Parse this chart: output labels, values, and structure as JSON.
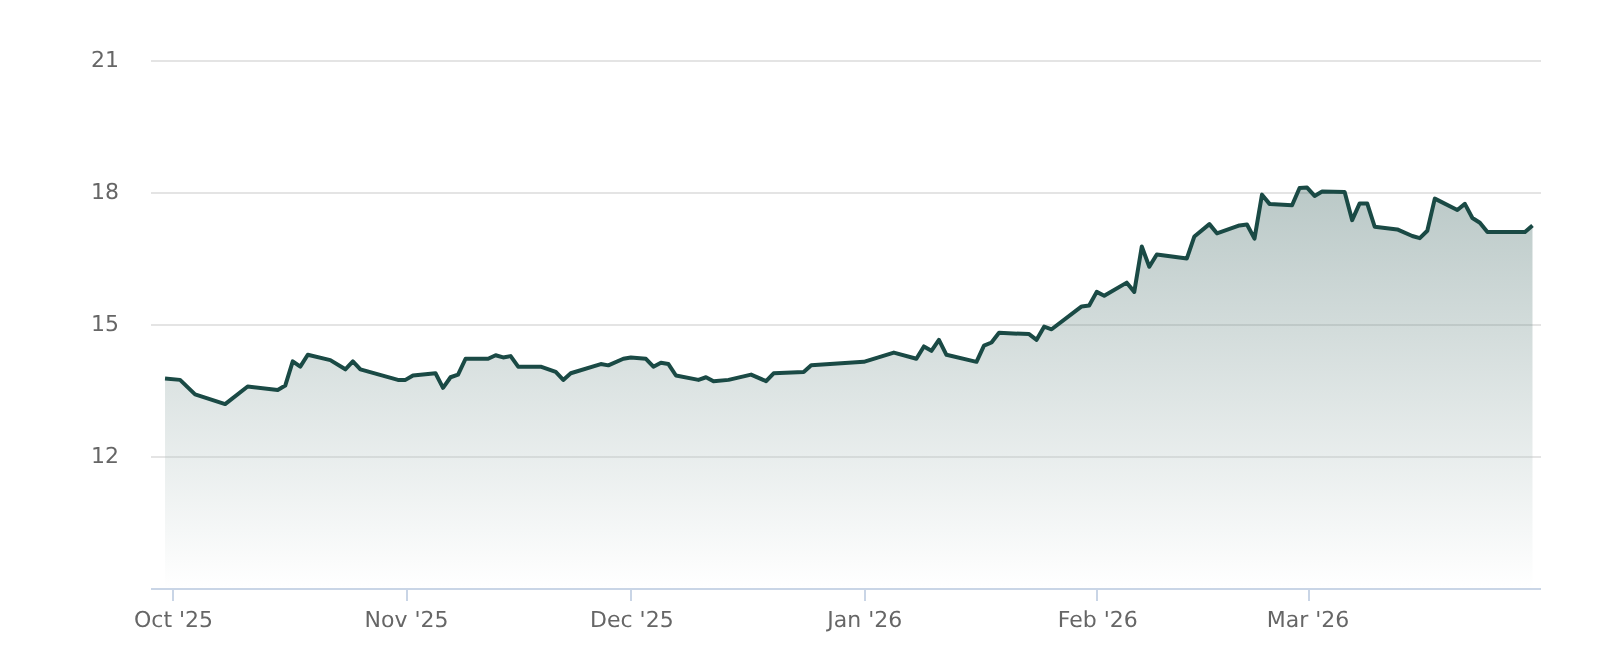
{
  "chart_data": {
    "type": "area",
    "x": [
      "2025-09-30",
      "2025-10-02",
      "2025-10-04",
      "2025-10-08",
      "2025-10-11",
      "2025-10-15",
      "2025-10-16",
      "2025-10-17",
      "2025-10-18",
      "2025-10-19",
      "2025-10-22",
      "2025-10-24",
      "2025-10-25",
      "2025-10-26",
      "2025-10-31",
      "2025-11-01",
      "2025-11-02",
      "2025-11-05",
      "2025-11-06",
      "2025-11-07",
      "2025-11-08",
      "2025-11-09",
      "2025-11-12",
      "2025-11-13",
      "2025-11-14",
      "2025-11-15",
      "2025-11-16",
      "2025-11-19",
      "2025-11-21",
      "2025-11-22",
      "2025-11-23",
      "2025-11-27",
      "2025-11-28",
      "2025-11-30",
      "2025-12-01",
      "2025-12-03",
      "2025-12-04",
      "2025-12-05",
      "2025-12-06",
      "2025-12-07",
      "2025-12-10",
      "2025-12-11",
      "2025-12-12",
      "2025-12-14",
      "2025-12-17",
      "2025-12-19",
      "2025-12-20",
      "2025-12-24",
      "2025-12-25",
      "2026-01-01",
      "2026-01-05",
      "2026-01-08",
      "2026-01-09",
      "2026-01-10",
      "2026-01-11",
      "2026-01-12",
      "2026-01-16",
      "2026-01-17",
      "2026-01-18",
      "2026-01-19",
      "2026-01-23",
      "2026-01-24",
      "2026-01-25",
      "2026-01-26",
      "2026-01-30",
      "2026-01-31",
      "2026-02-01",
      "2026-02-02",
      "2026-02-05",
      "2026-02-06",
      "2026-02-07",
      "2026-02-08",
      "2026-02-09",
      "2026-02-13",
      "2026-02-14",
      "2026-02-16",
      "2026-02-17",
      "2026-02-20",
      "2026-02-21",
      "2026-02-22",
      "2026-02-23",
      "2026-02-24",
      "2026-02-27",
      "2026-02-28",
      "2026-03-01",
      "2026-03-02",
      "2026-03-03",
      "2026-03-06",
      "2026-03-07",
      "2026-03-08",
      "2026-03-09",
      "2026-03-10",
      "2026-03-13",
      "2026-03-15",
      "2026-03-16",
      "2026-03-17",
      "2026-03-18",
      "2026-03-21",
      "2026-03-22",
      "2026-03-23",
      "2026-03-24",
      "2026-03-25",
      "2026-03-28",
      "2026-03-30",
      "2026-03-31"
    ],
    "series": [
      {
        "color": "#1a4a45",
        "values": [
          13.76,
          13.73,
          13.4,
          13.18,
          13.58,
          13.5,
          13.6,
          14.15,
          14.03,
          14.3,
          14.18,
          13.97,
          14.15,
          13.97,
          13.73,
          13.73,
          13.83,
          13.88,
          13.55,
          13.79,
          13.85,
          14.21,
          14.21,
          14.29,
          14.24,
          14.27,
          14.03,
          14.03,
          13.91,
          13.73,
          13.88,
          14.09,
          14.06,
          14.21,
          14.24,
          14.21,
          14.03,
          14.12,
          14.09,
          13.83,
          13.73,
          13.79,
          13.7,
          13.73,
          13.85,
          13.7,
          13.88,
          13.91,
          14.06,
          14.14,
          14.35,
          14.21,
          14.49,
          14.39,
          14.64,
          14.3,
          14.14,
          14.51,
          14.58,
          14.8,
          14.77,
          14.64,
          14.94,
          14.88,
          15.4,
          15.42,
          15.73,
          15.64,
          15.94,
          15.73,
          16.76,
          16.3,
          16.58,
          16.49,
          16.99,
          17.27,
          17.06,
          17.24,
          17.26,
          16.94,
          17.94,
          17.73,
          17.7,
          18.09,
          18.1,
          17.91,
          18.01,
          18.0,
          17.36,
          17.74,
          17.74,
          17.21,
          17.15,
          17.0,
          16.95,
          17.12,
          17.85,
          17.59,
          17.73,
          17.41,
          17.3,
          17.09,
          17.09,
          17.09,
          17.24
        ]
      }
    ],
    "xlim": [
      "2025-09-28",
      "2026-04-01"
    ],
    "xticks": [
      {
        "value": "2025-10-01",
        "label": "Oct '25"
      },
      {
        "value": "2025-11-01",
        "label": "Nov '25"
      },
      {
        "value": "2025-12-01",
        "label": "Dec '25"
      },
      {
        "value": "2026-01-01",
        "label": "Jan '26"
      },
      {
        "value": "2026-02-01",
        "label": "Feb '26"
      },
      {
        "value": "2026-03-01",
        "label": "Mar '26"
      }
    ],
    "ylim": [
      9,
      21
    ],
    "yticks": [
      12,
      15,
      18,
      21
    ],
    "grid": "y"
  }
}
